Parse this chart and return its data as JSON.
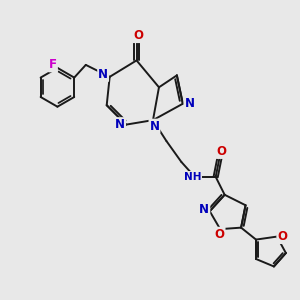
{
  "bg_color": "#e8e8e8",
  "bond_color": "#1a1a1a",
  "bond_width": 1.4,
  "atom_colors": {
    "N": "#0000bb",
    "O": "#cc0000",
    "F": "#cc00cc",
    "H": "#008080",
    "C": "#1a1a1a"
  },
  "font_size_atom": 8.5,
  "canvas_xlim": [
    0,
    10
  ],
  "canvas_ylim": [
    0,
    10
  ]
}
